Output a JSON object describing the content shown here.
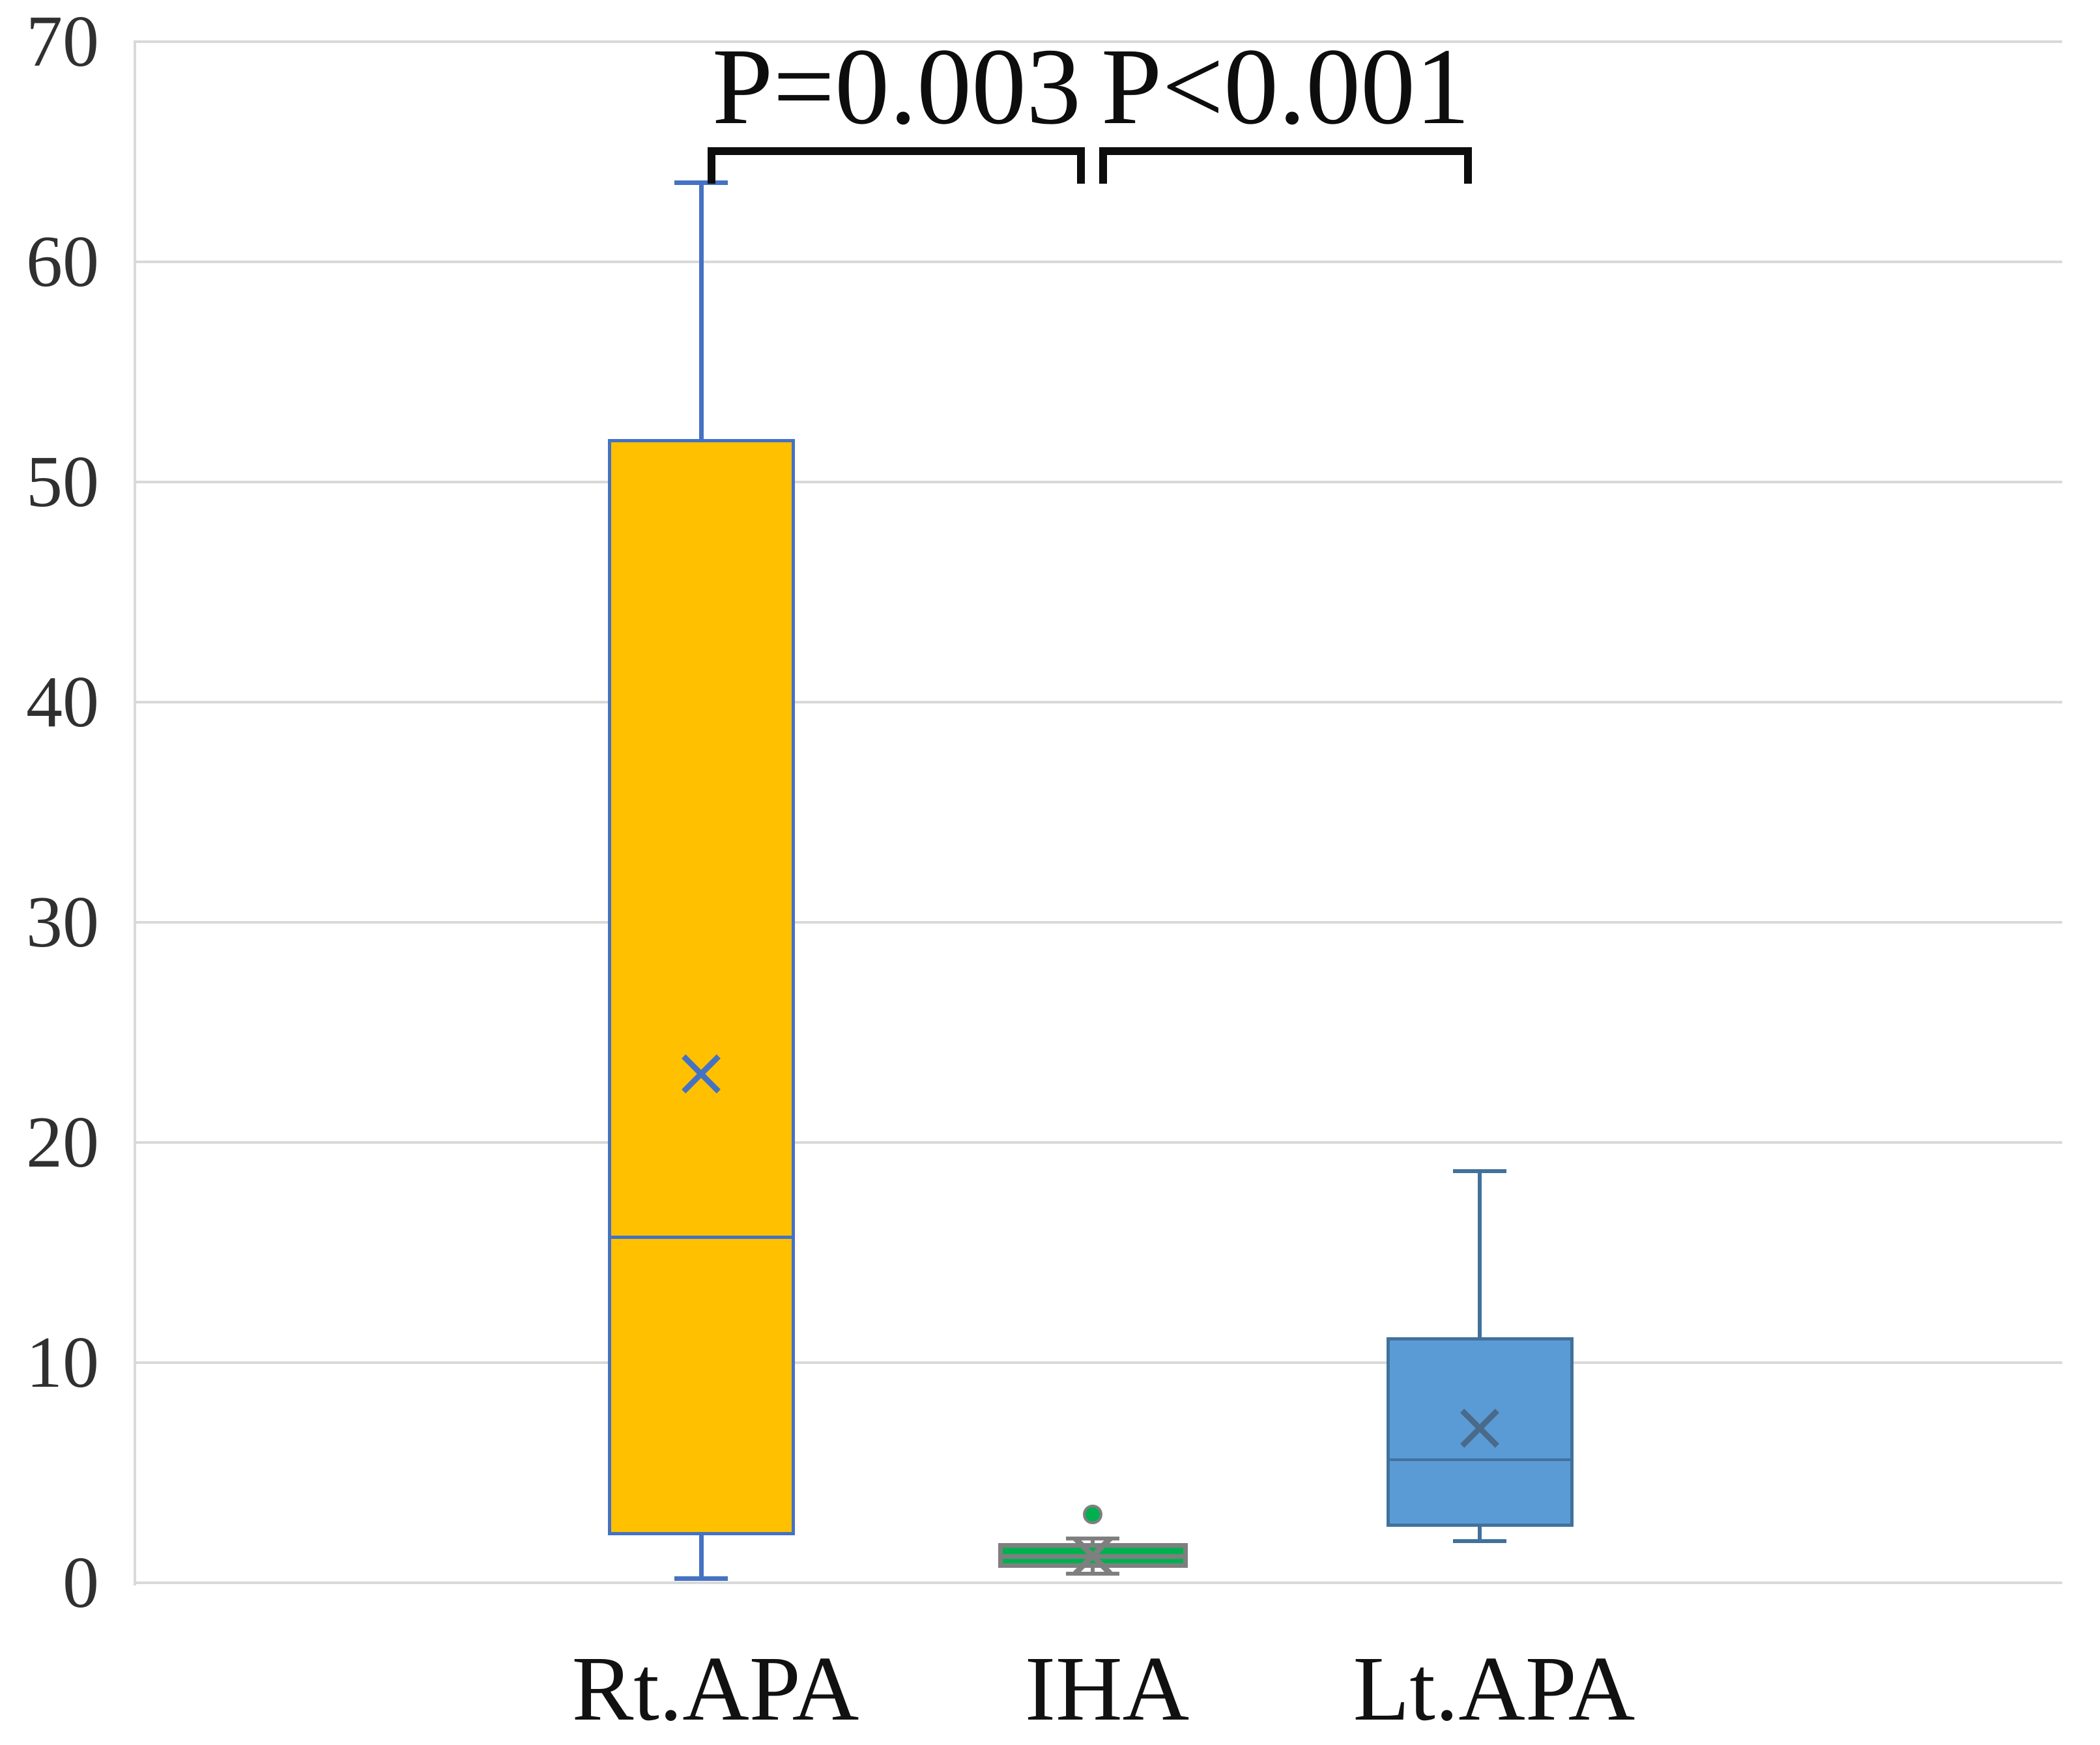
{
  "chart_data": {
    "type": "boxplot",
    "title": "",
    "xlabel": "",
    "ylabel": "",
    "ylim": [
      0,
      70
    ],
    "yticks": [
      0,
      10,
      20,
      30,
      40,
      50,
      60,
      70
    ],
    "grid": true,
    "legend": "none",
    "categories": [
      "Rt.APA",
      "IHA",
      "Lt.APA"
    ],
    "series": [
      {
        "name": "Rt.APA",
        "whisker_low": 0.2,
        "q1": 2.3,
        "median": 15.7,
        "q3": 51.8,
        "whisker_high": 63.6,
        "mean": 23.2,
        "outliers": [],
        "fill": "#FFC000",
        "line": "#4472C4",
        "mean_color": "#4472C4"
      },
      {
        "name": "IHA",
        "whisker_low": 0.4,
        "q1": 0.9,
        "median": 1.2,
        "q3": 1.6,
        "whisker_high": 2.0,
        "mean": 1.3,
        "outliers": [
          3.1
        ],
        "fill": "#00B050",
        "line": "#7F7F7F",
        "mean_color": "#7F7F7F"
      },
      {
        "name": "Lt.APA",
        "whisker_low": 1.9,
        "q1": 2.7,
        "median": 5.6,
        "q3": 11.0,
        "whisker_high": 18.7,
        "mean": 7.1,
        "outliers": [],
        "fill": "#5B9BD5",
        "line": "#41719C",
        "mean_color": "#4A6A8A"
      }
    ],
    "annotations": [
      {
        "label": "P=0.003",
        "between": [
          "Rt.APA",
          "IHA"
        ]
      },
      {
        "label": "P<0.001",
        "between": [
          "IHA",
          "Lt.APA"
        ]
      }
    ],
    "colors": {
      "gridline": "#D9D9D9",
      "axis_line": "#D9D9D9",
      "bracket": "#0d0d0d",
      "text": "#262626",
      "background": "#FFFFFF"
    }
  }
}
